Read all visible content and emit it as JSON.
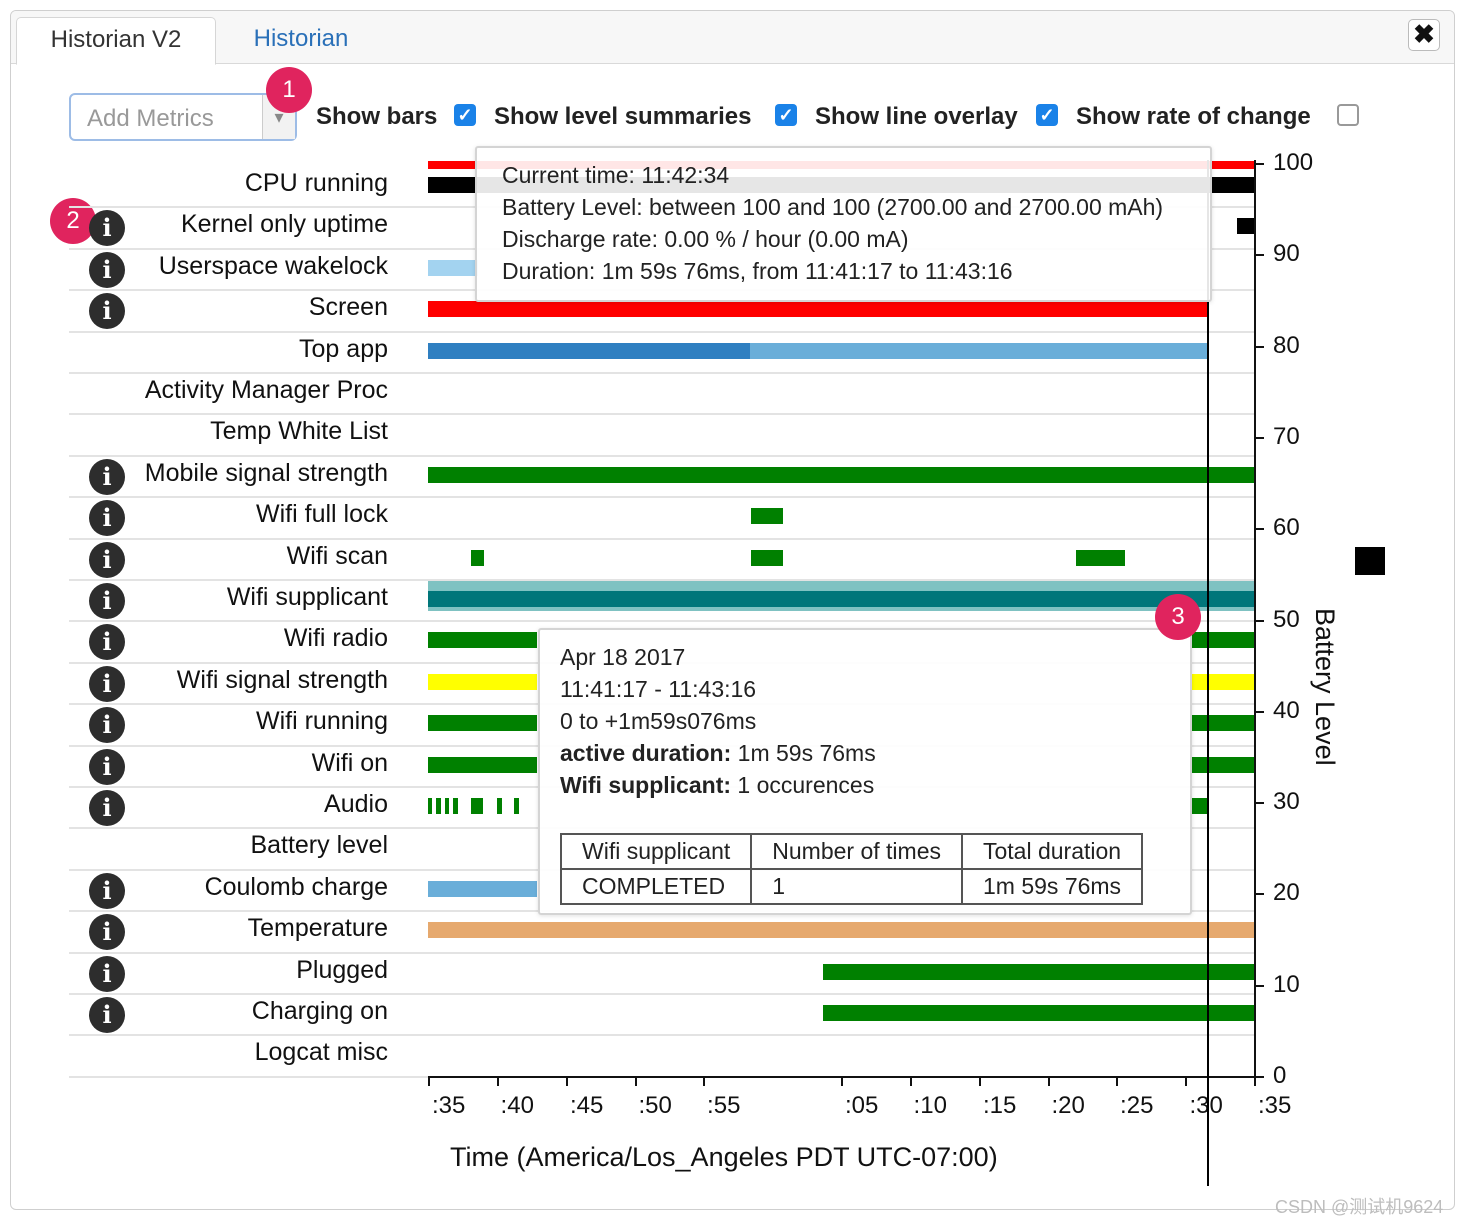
{
  "tabs": {
    "active": "Historian V2",
    "other": "Historian"
  },
  "close_label": "✖",
  "controls": {
    "add_metrics_placeholder": "Add Metrics",
    "dropdown_arrow": "▾",
    "show_bars": {
      "label": "Show bars",
      "checked": true
    },
    "show_level_summaries": {
      "label": "Show level summaries",
      "checked": true
    },
    "show_line_overlay": {
      "label": "Show line overlay",
      "checked": true
    },
    "show_rate_of_change": {
      "label": "Show rate of change",
      "checked": false
    },
    "checkmark": "✓"
  },
  "badges": [
    "1",
    "2",
    "3"
  ],
  "info_glyph": "i",
  "rows": [
    {
      "label": "CPU running",
      "info": false
    },
    {
      "label": "Kernel only uptime",
      "info": true
    },
    {
      "label": "Userspace wakelock",
      "info": true
    },
    {
      "label": "Screen",
      "info": true
    },
    {
      "label": "Top app",
      "info": false
    },
    {
      "label": "Activity Manager Proc",
      "info": false
    },
    {
      "label": "Temp White List",
      "info": false
    },
    {
      "label": "Mobile signal strength",
      "info": true
    },
    {
      "label": "Wifi full lock",
      "info": true
    },
    {
      "label": "Wifi scan",
      "info": true
    },
    {
      "label": "Wifi supplicant",
      "info": true
    },
    {
      "label": "Wifi radio",
      "info": true
    },
    {
      "label": "Wifi signal strength",
      "info": true
    },
    {
      "label": "Wifi running",
      "info": true
    },
    {
      "label": "Wifi on",
      "info": true
    },
    {
      "label": "Audio",
      "info": true
    },
    {
      "label": "Battery level",
      "info": false
    },
    {
      "label": "Coulomb charge",
      "info": true
    },
    {
      "label": "Temperature",
      "info": true
    },
    {
      "label": "Plugged",
      "info": true
    },
    {
      "label": "Charging on",
      "info": true
    },
    {
      "label": "Logcat misc",
      "info": false
    }
  ],
  "colors": {
    "red": "#ff0000",
    "black": "#000000",
    "lightblue": "#a3d3f0",
    "darkblue": "#2f7fc1",
    "midblue": "#6aaed9",
    "green": "#008000",
    "teal": "#00767a",
    "tealLight": "#7fc2c2",
    "yellow": "#ffff00",
    "orange": "#e6a96e",
    "coulomb": "#6aaed9"
  },
  "bars": [
    {
      "row": 0,
      "from": 0,
      "to": 2.5,
      "color": "red",
      "size": "thin-top"
    },
    {
      "row": 0,
      "from": 0,
      "to": 2.5,
      "color": "black",
      "size": "bottom"
    },
    {
      "row": 1,
      "from": 2.45,
      "to": 2.5,
      "color": "black",
      "size": "thin"
    },
    {
      "row": 2,
      "from": 0,
      "to": 0.15,
      "color": "lightblue",
      "size": "thin"
    },
    {
      "row": 3,
      "from": 0,
      "to": 2.36,
      "color": "red",
      "size": "thin"
    },
    {
      "row": 4,
      "from": 0,
      "to": 0.975,
      "color": "darkblue",
      "size": "thin"
    },
    {
      "row": 4,
      "from": 0.975,
      "to": 2.36,
      "color": "midblue",
      "size": "thin"
    },
    {
      "row": 7,
      "from": 0,
      "to": 2.5,
      "color": "green",
      "size": "thin"
    },
    {
      "row": 8,
      "from": 0.978,
      "to": 1.073,
      "color": "green",
      "size": "thin"
    },
    {
      "row": 9,
      "from": 0.13,
      "to": 0.17,
      "color": "green",
      "size": "thin"
    },
    {
      "row": 9,
      "from": 0.978,
      "to": 1.073,
      "color": "green",
      "size": "thin"
    },
    {
      "row": 9,
      "from": 1.96,
      "to": 2.11,
      "color": "green",
      "size": "thin"
    },
    {
      "row": 10,
      "from": 0,
      "to": 2.5,
      "color": "tealLight",
      "size": "full"
    },
    {
      "row": 10,
      "from": 0,
      "to": 2.5,
      "color": "teal",
      "size": "thin"
    },
    {
      "row": 11,
      "from": 0,
      "to": 0.33,
      "color": "green",
      "size": "thin"
    },
    {
      "row": 11,
      "from": 2.31,
      "to": 2.5,
      "color": "green",
      "size": "thin"
    },
    {
      "row": 12,
      "from": 0,
      "to": 0.33,
      "color": "yellow",
      "size": "thin"
    },
    {
      "row": 12,
      "from": 2.31,
      "to": 2.5,
      "color": "yellow",
      "size": "thin"
    },
    {
      "row": 13,
      "from": 0,
      "to": 0.33,
      "color": "green",
      "size": "thin"
    },
    {
      "row": 13,
      "from": 2.31,
      "to": 2.5,
      "color": "green",
      "size": "thin"
    },
    {
      "row": 14,
      "from": 0,
      "to": 0.33,
      "color": "green",
      "size": "thin"
    },
    {
      "row": 14,
      "from": 2.31,
      "to": 2.5,
      "color": "green",
      "size": "thin"
    },
    {
      "row": 15,
      "from": 0,
      "to": 0.013,
      "color": "green",
      "size": "thin"
    },
    {
      "row": 15,
      "from": 0.025,
      "to": 0.038,
      "color": "green",
      "size": "thin"
    },
    {
      "row": 15,
      "from": 0.05,
      "to": 0.063,
      "color": "green",
      "size": "thin"
    },
    {
      "row": 15,
      "from": 0.077,
      "to": 0.09,
      "color": "green",
      "size": "thin"
    },
    {
      "row": 15,
      "from": 0.13,
      "to": 0.165,
      "color": "green",
      "size": "thin"
    },
    {
      "row": 15,
      "from": 0.21,
      "to": 0.225,
      "color": "green",
      "size": "thin"
    },
    {
      "row": 15,
      "from": 0.26,
      "to": 0.275,
      "color": "green",
      "size": "thin"
    },
    {
      "row": 15,
      "from": 2.31,
      "to": 2.36,
      "color": "green",
      "size": "thin"
    },
    {
      "row": 17,
      "from": 0,
      "to": 0.33,
      "color": "coulomb",
      "size": "thin"
    },
    {
      "row": 18,
      "from": 0,
      "to": 2.5,
      "color": "orange",
      "size": "thin"
    },
    {
      "row": 19,
      "from": 1.195,
      "to": 2.5,
      "color": "green",
      "size": "thin"
    },
    {
      "row": 20,
      "from": 1.195,
      "to": 2.5,
      "color": "green",
      "size": "thin"
    }
  ],
  "battery_axis": {
    "title": "Battery Level",
    "ticks": [
      "100",
      "90",
      "80",
      "70",
      "60",
      "50",
      "40",
      "30",
      "20",
      "10",
      "0"
    ]
  },
  "time_axis": {
    "title": "Time (America/Los_Angeles PDT UTC-07:00)",
    "ticks": [
      {
        "label": ":35",
        "t": 0.0
      },
      {
        "label": ":40",
        "t": 0.083
      },
      {
        "label": ":45",
        "t": 0.167
      },
      {
        "label": ":50",
        "t": 0.25
      },
      {
        "label": ":55",
        "t": 0.333
      },
      {
        "label": ":05",
        "t": 0.5
      },
      {
        "label": ":10",
        "t": 0.583
      },
      {
        "label": ":15",
        "t": 0.667
      },
      {
        "label": ":20",
        "t": 0.75
      },
      {
        "label": ":25",
        "t": 0.833
      },
      {
        "label": ":30",
        "t": 0.917
      },
      {
        "label": ":35",
        "t": 1.0
      }
    ]
  },
  "tooltip_battery": {
    "current_time": "Current time: 11:42:34",
    "battery_level": "Battery Level: between 100 and 100 (2700.00 and 2700.00 mAh)",
    "discharge_rate": "Discharge rate: 0.00 % / hour (0.00 mA)",
    "duration": "Duration: 1m 59s 76ms, from 11:41:17 to 11:43:16"
  },
  "tooltip_event": {
    "date": "Apr 18 2017",
    "range": "11:41:17 - 11:43:16",
    "offset": "0 to +1m59s076ms",
    "active_label": "active duration:",
    "active_value": "1m 59s 76ms",
    "count_label": "Wifi supplicant:",
    "count_value": "1 occurences",
    "table_headers": [
      "Wifi supplicant",
      "Number of times",
      "Total duration"
    ],
    "table_row": [
      "COMPLETED",
      "1",
      "1m 59s 76ms"
    ]
  },
  "watermark": "CSDN @测试机9624"
}
